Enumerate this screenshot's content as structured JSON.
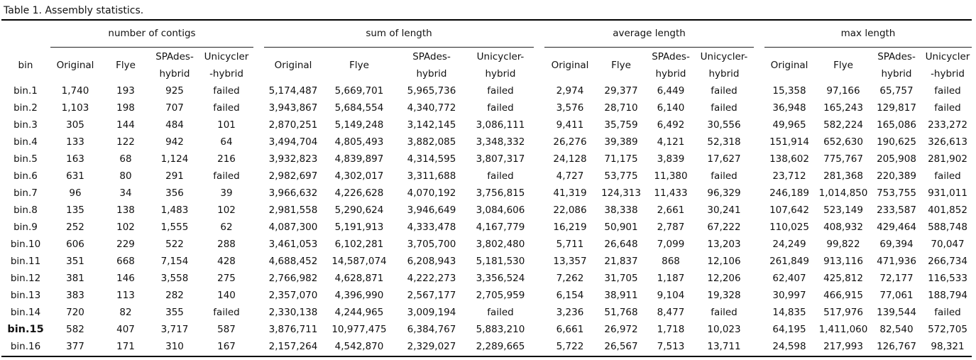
{
  "caption": "Table 1. Assembly statistics.",
  "bin_header": "bin",
  "groups": [
    "number of contigs",
    "sum of length",
    "average length",
    "max length"
  ],
  "sub_headers": [
    "Original",
    "Flye",
    "SPAdes-\nhybrid",
    "Unicycler\n-hybrid",
    "Original",
    "Flye",
    "SPAdes-\nhybrid",
    "Unicycler-\nhybrid",
    "Original",
    "Flye",
    "SPAdes-\nhybrid",
    "Unicycler-\nhybrid",
    "Original",
    "Flye",
    "SPAdes-\nhybrid",
    "Unicycler\n-hybrid"
  ],
  "highlighted_bin": "bin.15",
  "rows": [
    [
      "bin.1",
      "1,740",
      "193",
      "925",
      "failed",
      "5,174,487",
      "5,669,701",
      "5,965,736",
      "failed",
      "2,974",
      "29,377",
      "6,449",
      "failed",
      "15,358",
      "97,166",
      "65,757",
      "failed"
    ],
    [
      "bin.2",
      "1,103",
      "198",
      "707",
      "failed",
      "3,943,867",
      "5,684,554",
      "4,340,772",
      "failed",
      "3,576",
      "28,710",
      "6,140",
      "failed",
      "36,948",
      "165,243",
      "129,817",
      "failed"
    ],
    [
      "bin.3",
      "305",
      "144",
      "484",
      "101",
      "2,870,251",
      "5,149,248",
      "3,142,145",
      "3,086,111",
      "9,411",
      "35,759",
      "6,492",
      "30,556",
      "49,965",
      "582,224",
      "165,086",
      "233,272"
    ],
    [
      "bin.4",
      "133",
      "122",
      "942",
      "64",
      "3,494,704",
      "4,805,493",
      "3,882,085",
      "3,348,332",
      "26,276",
      "39,389",
      "4,121",
      "52,318",
      "151,914",
      "652,630",
      "190,625",
      "326,613"
    ],
    [
      "bin.5",
      "163",
      "68",
      "1,124",
      "216",
      "3,932,823",
      "4,839,897",
      "4,314,595",
      "3,807,317",
      "24,128",
      "71,175",
      "3,839",
      "17,627",
      "138,602",
      "775,767",
      "205,908",
      "281,902"
    ],
    [
      "bin.6",
      "631",
      "80",
      "291",
      "failed",
      "2,982,697",
      "4,302,017",
      "3,311,688",
      "failed",
      "4,727",
      "53,775",
      "11,380",
      "failed",
      "23,712",
      "281,368",
      "220,389",
      "failed"
    ],
    [
      "bin.7",
      "96",
      "34",
      "356",
      "39",
      "3,966,632",
      "4,226,628",
      "4,070,192",
      "3,756,815",
      "41,319",
      "124,313",
      "11,433",
      "96,329",
      "246,189",
      "1,014,850",
      "753,755",
      "931,011"
    ],
    [
      "bin.8",
      "135",
      "138",
      "1,483",
      "102",
      "2,981,558",
      "5,290,624",
      "3,946,649",
      "3,084,606",
      "22,086",
      "38,338",
      "2,661",
      "30,241",
      "107,642",
      "523,149",
      "233,587",
      "401,852"
    ],
    [
      "bin.9",
      "252",
      "102",
      "1,555",
      "62",
      "4,087,300",
      "5,191,913",
      "4,333,478",
      "4,167,779",
      "16,219",
      "50,901",
      "2,787",
      "67,222",
      "110,025",
      "408,932",
      "429,464",
      "588,748"
    ],
    [
      "bin.10",
      "606",
      "229",
      "522",
      "288",
      "3,461,053",
      "6,102,281",
      "3,705,700",
      "3,802,480",
      "5,711",
      "26,648",
      "7,099",
      "13,203",
      "24,249",
      "99,822",
      "69,394",
      "70,047"
    ],
    [
      "bin.11",
      "351",
      "668",
      "7,154",
      "428",
      "4,688,452",
      "14,587,074",
      "6,208,943",
      "5,181,530",
      "13,357",
      "21,837",
      "868",
      "12,106",
      "261,849",
      "913,116",
      "471,936",
      "266,734"
    ],
    [
      "bin.12",
      "381",
      "146",
      "3,558",
      "275",
      "2,766,982",
      "4,628,871",
      "4,222,273",
      "3,356,524",
      "7,262",
      "31,705",
      "1,187",
      "12,206",
      "62,407",
      "425,812",
      "72,177",
      "116,533"
    ],
    [
      "bin.13",
      "383",
      "113",
      "282",
      "140",
      "2,357,070",
      "4,396,990",
      "2,567,177",
      "2,705,959",
      "6,154",
      "38,911",
      "9,104",
      "19,328",
      "30,997",
      "466,915",
      "77,061",
      "188,794"
    ],
    [
      "bin.14",
      "720",
      "82",
      "355",
      "failed",
      "2,330,138",
      "4,244,965",
      "3,009,194",
      "failed",
      "3,236",
      "51,768",
      "8,477",
      "failed",
      "14,835",
      "517,976",
      "139,544",
      "failed"
    ],
    [
      "bin.15",
      "582",
      "407",
      "3,717",
      "587",
      "3,876,711",
      "10,977,475",
      "6,384,767",
      "5,883,210",
      "6,661",
      "26,972",
      "1,718",
      "10,023",
      "64,195",
      "1,411,060",
      "82,540",
      "572,705"
    ],
    [
      "bin.16",
      "377",
      "171",
      "310",
      "167",
      "2,157,264",
      "4,542,870",
      "2,329,027",
      "2,289,665",
      "5,722",
      "26,567",
      "7,513",
      "13,711",
      "24,598",
      "217,993",
      "126,767",
      "98,321"
    ]
  ]
}
